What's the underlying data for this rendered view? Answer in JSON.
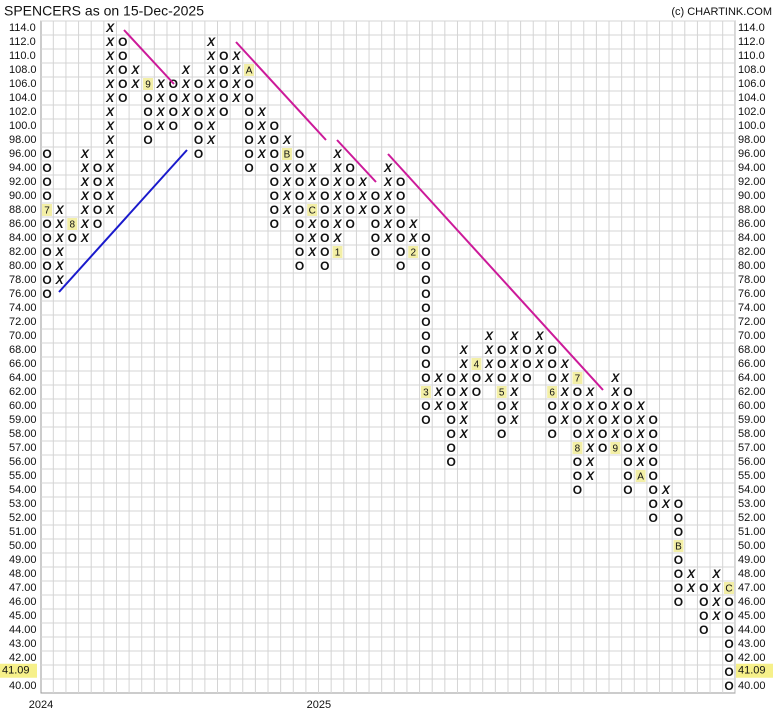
{
  "chart_data": {
    "type": "point-and-figure",
    "title": "SPENCERS as on 15-Dec-2025",
    "credit": "(c) CHARTINK.COM",
    "x_color": "#2e8b2e",
    "o_color": "#e8302a",
    "marker_color": "#f3efa6",
    "box_levels": [
      114,
      112,
      110,
      108,
      106,
      104,
      102,
      100,
      98,
      96,
      94,
      92,
      90,
      88,
      86,
      84,
      82,
      80,
      78,
      76,
      74,
      72,
      70,
      68,
      66,
      64,
      62,
      60,
      59,
      58,
      57,
      56,
      55,
      54,
      53,
      52,
      51,
      50,
      49,
      48,
      47,
      46,
      45,
      44,
      43,
      42,
      41,
      40
    ],
    "yticks": [
      {
        "value": 114,
        "label": "114.0"
      },
      {
        "value": 112,
        "label": "112.0"
      },
      {
        "value": 110,
        "label": "110.0"
      },
      {
        "value": 108,
        "label": "108.0"
      },
      {
        "value": 106,
        "label": "106.0"
      },
      {
        "value": 104,
        "label": "104.0"
      },
      {
        "value": 102,
        "label": "102.0"
      },
      {
        "value": 100,
        "label": "100.0"
      },
      {
        "value": 98,
        "label": "98.00"
      },
      {
        "value": 96,
        "label": "96.00"
      },
      {
        "value": 94,
        "label": "94.00"
      },
      {
        "value": 92,
        "label": "92.00"
      },
      {
        "value": 90,
        "label": "90.00"
      },
      {
        "value": 88,
        "label": "88.00"
      },
      {
        "value": 86,
        "label": "86.00"
      },
      {
        "value": 84,
        "label": "84.00"
      },
      {
        "value": 82,
        "label": "82.00"
      },
      {
        "value": 80,
        "label": "80.00"
      },
      {
        "value": 78,
        "label": "78.00"
      },
      {
        "value": 76,
        "label": "76.00"
      },
      {
        "value": 74,
        "label": "74.00"
      },
      {
        "value": 72,
        "label": "72.00"
      },
      {
        "value": 70,
        "label": "70.00"
      },
      {
        "value": 68,
        "label": "68.00"
      },
      {
        "value": 66,
        "label": "66.00"
      },
      {
        "value": 64,
        "label": "64.00"
      },
      {
        "value": 62,
        "label": "62.00"
      },
      {
        "value": 60,
        "label": "60.00"
      },
      {
        "value": 59,
        "label": "59.00"
      },
      {
        "value": 58,
        "label": "58.00"
      },
      {
        "value": 57,
        "label": "57.00"
      },
      {
        "value": 56,
        "label": "56.00"
      },
      {
        "value": 55,
        "label": "55.00"
      },
      {
        "value": 54,
        "label": "54.00"
      },
      {
        "value": 53,
        "label": "53.00"
      },
      {
        "value": 52,
        "label": "52.00"
      },
      {
        "value": 51,
        "label": "51.00"
      },
      {
        "value": 50,
        "label": "50.00"
      },
      {
        "value": 49,
        "label": "49.00"
      },
      {
        "value": 48,
        "label": "48.00"
      },
      {
        "value": 47,
        "label": "47.00"
      },
      {
        "value": 46,
        "label": "46.00"
      },
      {
        "value": 45,
        "label": "45.00"
      },
      {
        "value": 44,
        "label": "44.00"
      },
      {
        "value": 43,
        "label": "43.00"
      },
      {
        "value": 42,
        "label": "42.00"
      },
      {
        "value": 40,
        "label": "40.00"
      }
    ],
    "current_price": {
      "value": 41.09,
      "label": "41.09",
      "color": "#f6f08a"
    },
    "columns": [
      {
        "type": "O",
        "high": 96,
        "low": 76,
        "markers": [
          {
            "value": 88,
            "label": "7"
          }
        ],
        "year": "2024"
      },
      {
        "type": "X",
        "high": 88,
        "low": 78
      },
      {
        "type": "O",
        "high": 86,
        "low": 84,
        "markers": [
          {
            "value": 86,
            "label": "8"
          }
        ]
      },
      {
        "type": "X",
        "high": 96,
        "low": 84
      },
      {
        "type": "O",
        "high": 94,
        "low": 86
      },
      {
        "type": "X",
        "high": 114,
        "low": 88
      },
      {
        "type": "O",
        "high": 112,
        "low": 104
      },
      {
        "type": "X",
        "high": 108,
        "low": 106
      },
      {
        "type": "O",
        "high": 106,
        "low": 98,
        "markers": [
          {
            "value": 106,
            "label": "9"
          }
        ]
      },
      {
        "type": "X",
        "high": 106,
        "low": 100
      },
      {
        "type": "O",
        "high": 106,
        "low": 100
      },
      {
        "type": "X",
        "high": 108,
        "low": 102
      },
      {
        "type": "O",
        "high": 106,
        "low": 96
      },
      {
        "type": "X",
        "high": 112,
        "low": 98
      },
      {
        "type": "O",
        "high": 110,
        "low": 102
      },
      {
        "type": "X",
        "high": 110,
        "low": 104
      },
      {
        "type": "O",
        "high": 108,
        "low": 94,
        "markers": [
          {
            "value": 108,
            "label": "A"
          }
        ]
      },
      {
        "type": "X",
        "high": 102,
        "low": 96
      },
      {
        "type": "O",
        "high": 100,
        "low": 86
      },
      {
        "type": "X",
        "high": 98,
        "low": 88,
        "markers": [
          {
            "value": 96,
            "label": "B"
          }
        ]
      },
      {
        "type": "O",
        "high": 96,
        "low": 80
      },
      {
        "type": "X",
        "high": 94,
        "low": 82,
        "markers": [
          {
            "value": 88,
            "label": "C"
          }
        ]
      },
      {
        "type": "O",
        "high": 92,
        "low": 80,
        "year": "2025"
      },
      {
        "type": "X",
        "high": 96,
        "low": 82,
        "markers": [
          {
            "value": 82,
            "label": "1"
          }
        ]
      },
      {
        "type": "O",
        "high": 94,
        "low": 86
      },
      {
        "type": "X",
        "high": 92,
        "low": 88
      },
      {
        "type": "O",
        "high": 90,
        "low": 82
      },
      {
        "type": "X",
        "high": 94,
        "low": 84
      },
      {
        "type": "O",
        "high": 92,
        "low": 80
      },
      {
        "type": "X",
        "high": 86,
        "low": 82,
        "markers": [
          {
            "value": 82,
            "label": "2"
          }
        ]
      },
      {
        "type": "O",
        "high": 84,
        "low": 59,
        "markers": [
          {
            "value": 62,
            "label": "3"
          }
        ]
      },
      {
        "type": "X",
        "high": 64,
        "low": 60
      },
      {
        "type": "O",
        "high": 64,
        "low": 56
      },
      {
        "type": "X",
        "high": 68,
        "low": 58
      },
      {
        "type": "O",
        "high": 66,
        "low": 62,
        "markers": [
          {
            "value": 66,
            "label": "4"
          }
        ]
      },
      {
        "type": "X",
        "high": 70,
        "low": 64
      },
      {
        "type": "O",
        "high": 68,
        "low": 58,
        "markers": [
          {
            "value": 62,
            "label": "5"
          }
        ]
      },
      {
        "type": "X",
        "high": 70,
        "low": 59
      },
      {
        "type": "O",
        "high": 68,
        "low": 64
      },
      {
        "type": "X",
        "high": 70,
        "low": 66
      },
      {
        "type": "O",
        "high": 68,
        "low": 58,
        "markers": [
          {
            "value": 62,
            "label": "6"
          }
        ]
      },
      {
        "type": "X",
        "high": 66,
        "low": 59
      },
      {
        "type": "O",
        "high": 64,
        "low": 54,
        "markers": [
          {
            "value": 64,
            "label": "7"
          },
          {
            "value": 57,
            "label": "8"
          }
        ]
      },
      {
        "type": "X",
        "high": 62,
        "low": 55
      },
      {
        "type": "O",
        "high": 60,
        "low": 57
      },
      {
        "type": "X",
        "high": 64,
        "low": 57,
        "markers": [
          {
            "value": 57,
            "label": "9"
          }
        ]
      },
      {
        "type": "O",
        "high": 62,
        "low": 54
      },
      {
        "type": "X",
        "high": 60,
        "low": 55,
        "markers": [
          {
            "value": 55,
            "label": "A"
          }
        ]
      },
      {
        "type": "O",
        "high": 59,
        "low": 52
      },
      {
        "type": "X",
        "high": 54,
        "low": 53
      },
      {
        "type": "O",
        "high": 53,
        "low": 46,
        "markers": [
          {
            "value": 50,
            "label": "B"
          }
        ]
      },
      {
        "type": "X",
        "high": 48,
        "low": 47
      },
      {
        "type": "O",
        "high": 47,
        "low": 44
      },
      {
        "type": "X",
        "high": 48,
        "low": 45
      },
      {
        "type": "O",
        "high": 47,
        "low": 40,
        "markers": [
          {
            "value": 47,
            "label": "C"
          }
        ]
      }
    ]
  }
}
